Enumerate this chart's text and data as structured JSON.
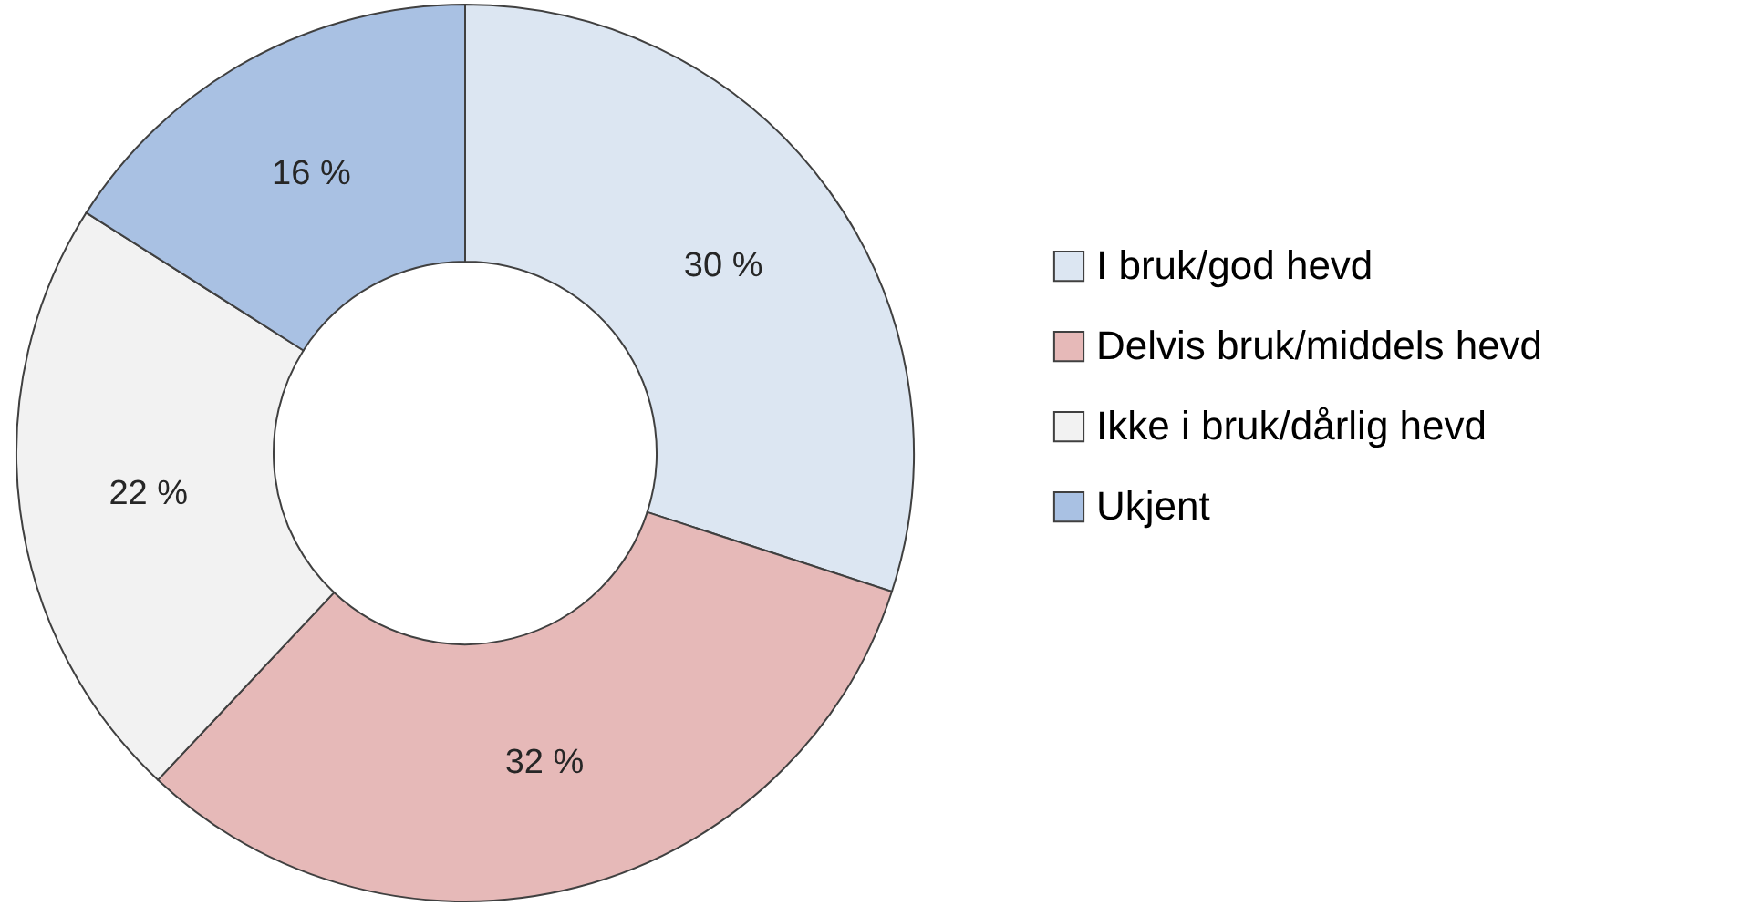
{
  "chart_data": {
    "type": "donut",
    "categories": [
      "I bruk/god hevd",
      "Delvis bruk/middels hevd",
      "Ikke i bruk/dårlig hevd",
      "Ukjent"
    ],
    "values": [
      30,
      32,
      22,
      16
    ],
    "value_labels": [
      "30 %",
      "32 %",
      "22 %",
      "16 %"
    ],
    "colors": [
      "#dce6f2",
      "#e6b9b8",
      "#f2f2f2",
      "#a9c1e3"
    ],
    "legend": "right"
  }
}
